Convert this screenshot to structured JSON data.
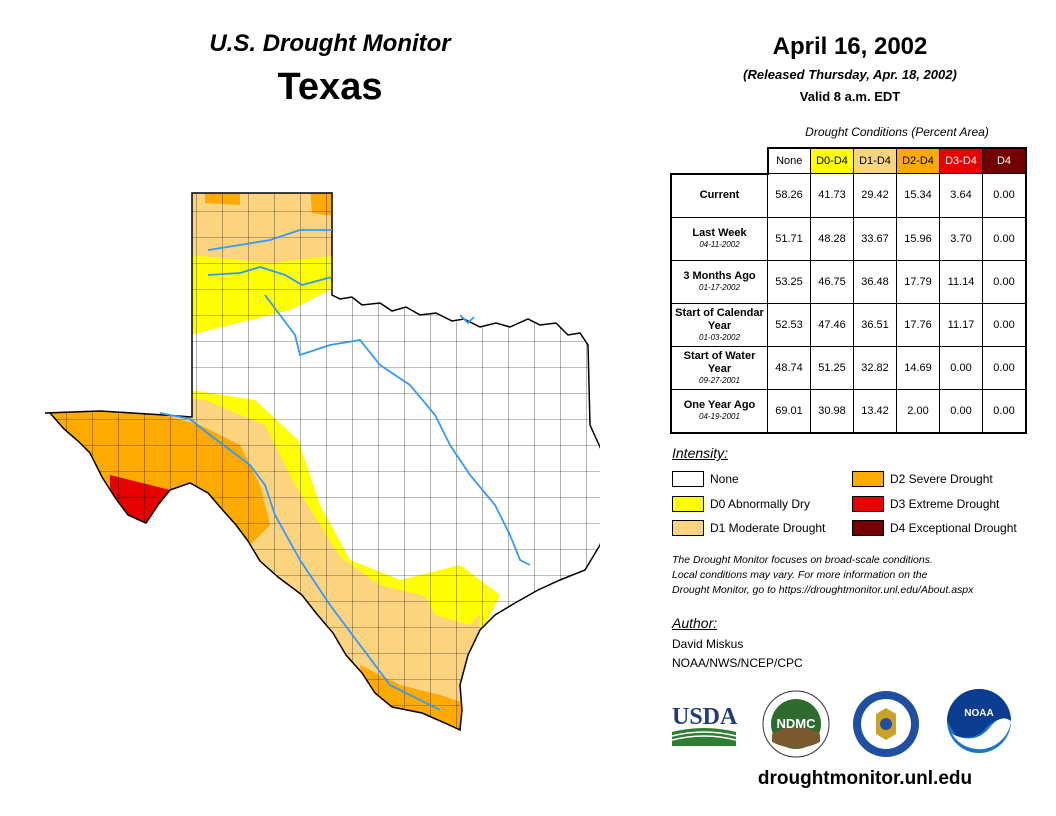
{
  "header": {
    "title": "U.S. Drought Monitor",
    "state": "Texas"
  },
  "date": "April 16, 2002",
  "released": "(Released Thursday, Apr. 18, 2002)",
  "valid": "Valid 8 a.m. EDT",
  "conditions": {
    "caption": "Drought Conditions (Percent Area)",
    "columns": [
      "None",
      "D0-D4",
      "D1-D4",
      "D2-D4",
      "D3-D4",
      "D4"
    ],
    "column_colors": [
      "#ffffff",
      "#ffff00",
      "#fcd37f",
      "#ffaa00",
      "#e60000",
      "#730000"
    ],
    "rows": [
      {
        "label": "Current",
        "date": "",
        "values": [
          "58.26",
          "41.73",
          "29.42",
          "15.34",
          "3.64",
          "0.00"
        ]
      },
      {
        "label": "Last Week",
        "date": "04-11-2002",
        "values": [
          "51.71",
          "48.28",
          "33.67",
          "15.96",
          "3.70",
          "0.00"
        ]
      },
      {
        "label": "3 Months Ago",
        "date": "01-17-2002",
        "values": [
          "53.25",
          "46.75",
          "36.48",
          "17.79",
          "11.14",
          "0.00"
        ]
      },
      {
        "label": "Start of Calendar Year",
        "date": "01-03-2002",
        "values": [
          "52.53",
          "47.46",
          "36.51",
          "17.76",
          "11.17",
          "0.00"
        ]
      },
      {
        "label": "Start of Water Year",
        "date": "09-27-2001",
        "values": [
          "48.74",
          "51.25",
          "32.82",
          "14.69",
          "0.00",
          "0.00"
        ]
      },
      {
        "label": "One Year Ago",
        "date": "04-19-2001",
        "values": [
          "69.01",
          "30.98",
          "13.42",
          "2.00",
          "0.00",
          "0.00"
        ]
      }
    ]
  },
  "legend": {
    "title": "Intensity:",
    "items": [
      {
        "label": "None",
        "color": "#ffffff"
      },
      {
        "label": "D0 Abnormally Dry",
        "color": "#ffff00"
      },
      {
        "label": "D1 Moderate Drought",
        "color": "#fcd37f"
      },
      {
        "label": "D2 Severe Drought",
        "color": "#ffaa00"
      },
      {
        "label": "D3 Extreme Drought",
        "color": "#e60000"
      },
      {
        "label": "D4 Exceptional Drought",
        "color": "#730000"
      }
    ]
  },
  "note": {
    "line1": "The Drought Monitor focuses on broad-scale conditions.",
    "line2": "Local conditions may vary. For more information on the",
    "line3": "Drought Monitor, go to https://droughtmonitor.unl.edu/About.aspx"
  },
  "author": {
    "title": "Author:",
    "name": "David Miskus",
    "org": "NOAA/NWS/NCEP/CPC"
  },
  "logos": {
    "usda": "USDA",
    "ndmc": "NDMC",
    "noaa": "NOAA"
  },
  "url": "droughtmonitor.unl.edu",
  "colors": {
    "river": "#3399ff",
    "county_line": "#000000"
  }
}
